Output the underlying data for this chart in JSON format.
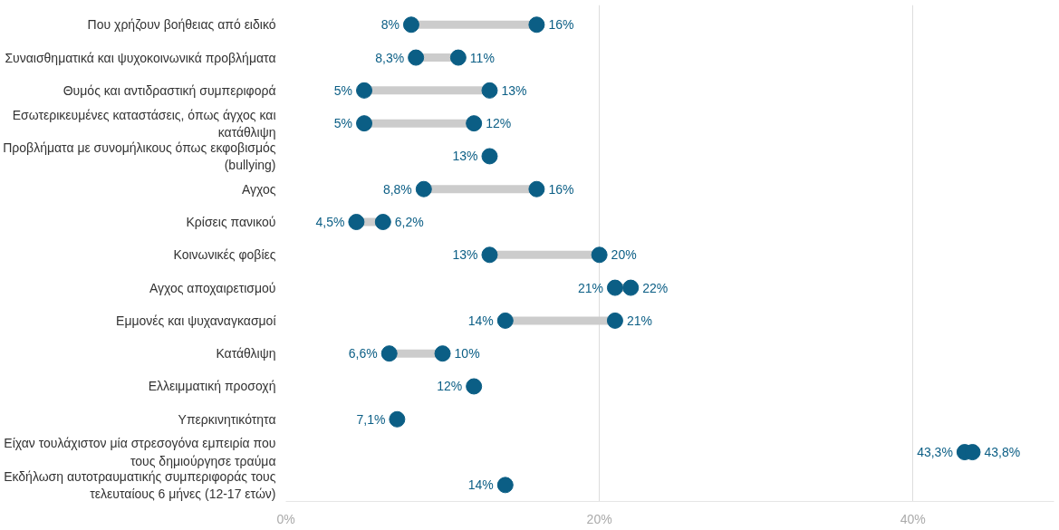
{
  "chart_data": {
    "type": "scatter",
    "orientation": "horizontal",
    "categories": [
      "Που χρήζουν βοήθειας από ειδικό",
      "Συναισθηματικά και ψυχοκοινωνικά προβλήματα",
      "Θυμός και αντιδραστική συμπεριφορά",
      "Εσωτερικευμένες καταστάσεις, όπως άγχος και κατάθλιψη",
      "Προβλήματα με συνομήλικους όπως εκφοβισμός (bullying)",
      "Αγχος",
      "Κρίσεις πανικού",
      "Κοινωνικές φοβίες",
      "Αγχος αποχαιρετισμού",
      "Εμμονές και ψυχαναγκασμοί",
      "Κατάθλιψη",
      "Ελλειμματική προσοχή",
      "Υπερκινητικότητα",
      "Είχαν τουλάχιστον μία στρεσογόνα εμπειρία που τους δημιούργησε τραύμα",
      "Εκδήλωση αυτοτραυματικής συμπεριφοράς τους τελευταίους 6 μήνες (12-17 ετών)"
    ],
    "series": [
      {
        "color": "#0b5e85",
        "values": [
          8,
          8.3,
          5,
          5,
          13,
          8.8,
          4.5,
          13,
          21,
          14,
          6.6,
          12,
          7.1,
          43.3,
          14
        ],
        "value_labels": [
          "8%",
          "8,3%",
          "5%",
          "5%",
          "13%",
          "8,8%",
          "4,5%",
          "13%",
          "21%",
          "14%",
          "6,6%",
          "12%",
          "7,1%",
          "43,3%",
          "14%"
        ]
      },
      {
        "color": "#0b5e85",
        "values": [
          16,
          11,
          13,
          12,
          null,
          16,
          6.2,
          20,
          22,
          21,
          10,
          null,
          null,
          43.8,
          null
        ],
        "value_labels": [
          "16%",
          "11%",
          "13%",
          "12%",
          null,
          "16%",
          "6,2%",
          "20%",
          "22%",
          "21%",
          "10%",
          null,
          null,
          "43,8%",
          null
        ]
      }
    ],
    "xticks": [
      {
        "value": 0,
        "label": "0%"
      },
      {
        "value": 20,
        "label": "20%"
      },
      {
        "value": 40,
        "label": "40%"
      }
    ],
    "xlim": [
      0,
      49
    ],
    "grid": "x",
    "marker": "circle"
  }
}
